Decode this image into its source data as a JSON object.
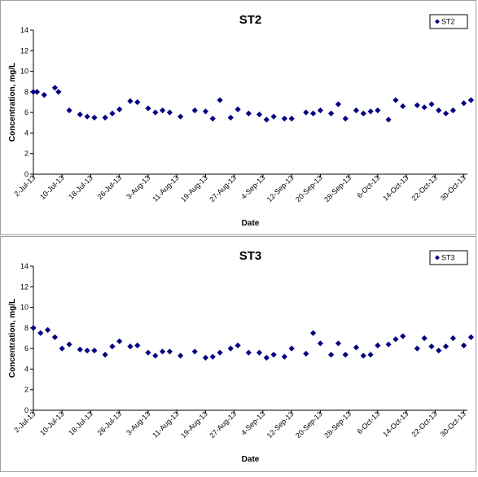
{
  "chart_data": [
    {
      "type": "scatter",
      "title": "ST2",
      "xlabel": "Date",
      "ylabel": "Concentration, mg/L",
      "xlim": [
        "2013-07-02",
        "2013-10-31"
      ],
      "ylim": [
        0,
        14
      ],
      "y_ticks": [
        0,
        2,
        4,
        6,
        8,
        10,
        12,
        14
      ],
      "x_tick_labels": [
        "2-Jul-13",
        "10-Jul-13",
        "18-Jul-13",
        "26-Jul-13",
        "3-Aug-13",
        "11-Aug-13",
        "19-Aug-13",
        "27-Aug-13",
        "4-Sep-13",
        "12-Sep-13",
        "20-Sep-13",
        "28-Sep-13",
        "6-Oct-13",
        "14-Oct-13",
        "22-Oct-13",
        "30-Oct-13"
      ],
      "x_tick_dates": [
        "2013-07-02",
        "2013-07-10",
        "2013-07-18",
        "2013-07-26",
        "2013-08-03",
        "2013-08-11",
        "2013-08-19",
        "2013-08-27",
        "2013-09-04",
        "2013-09-12",
        "2013-09-20",
        "2013-09-28",
        "2013-10-06",
        "2013-10-14",
        "2013-10-22",
        "2013-10-30"
      ],
      "legend_position": "top-right",
      "marker_color": "#000080",
      "series": [
        {
          "name": "ST2",
          "points": [
            {
              "x": "2013-07-02",
              "y": 8.0
            },
            {
              "x": "2013-07-03",
              "y": 8.0
            },
            {
              "x": "2013-07-05",
              "y": 7.7
            },
            {
              "x": "2013-07-08",
              "y": 8.4
            },
            {
              "x": "2013-07-09",
              "y": 8.0
            },
            {
              "x": "2013-07-12",
              "y": 6.2
            },
            {
              "x": "2013-07-15",
              "y": 5.8
            },
            {
              "x": "2013-07-17",
              "y": 5.6
            },
            {
              "x": "2013-07-19",
              "y": 5.5
            },
            {
              "x": "2013-07-22",
              "y": 5.5
            },
            {
              "x": "2013-07-24",
              "y": 5.9
            },
            {
              "x": "2013-07-26",
              "y": 6.3
            },
            {
              "x": "2013-07-29",
              "y": 7.1
            },
            {
              "x": "2013-07-31",
              "y": 7.0
            },
            {
              "x": "2013-08-03",
              "y": 6.4
            },
            {
              "x": "2013-08-05",
              "y": 6.0
            },
            {
              "x": "2013-08-07",
              "y": 6.2
            },
            {
              "x": "2013-08-09",
              "y": 6.0
            },
            {
              "x": "2013-08-12",
              "y": 5.6
            },
            {
              "x": "2013-08-16",
              "y": 6.2
            },
            {
              "x": "2013-08-19",
              "y": 6.1
            },
            {
              "x": "2013-08-21",
              "y": 5.4
            },
            {
              "x": "2013-08-23",
              "y": 7.2
            },
            {
              "x": "2013-08-26",
              "y": 5.5
            },
            {
              "x": "2013-08-28",
              "y": 6.3
            },
            {
              "x": "2013-08-31",
              "y": 5.9
            },
            {
              "x": "2013-09-03",
              "y": 5.8
            },
            {
              "x": "2013-09-05",
              "y": 5.3
            },
            {
              "x": "2013-09-07",
              "y": 5.6
            },
            {
              "x": "2013-09-10",
              "y": 5.4
            },
            {
              "x": "2013-09-12",
              "y": 5.4
            },
            {
              "x": "2013-09-16",
              "y": 6.0
            },
            {
              "x": "2013-09-18",
              "y": 5.9
            },
            {
              "x": "2013-09-20",
              "y": 6.2
            },
            {
              "x": "2013-09-23",
              "y": 5.9
            },
            {
              "x": "2013-09-25",
              "y": 6.8
            },
            {
              "x": "2013-09-27",
              "y": 5.4
            },
            {
              "x": "2013-09-30",
              "y": 6.2
            },
            {
              "x": "2013-10-02",
              "y": 5.9
            },
            {
              "x": "2013-10-04",
              "y": 6.1
            },
            {
              "x": "2013-10-06",
              "y": 6.2
            },
            {
              "x": "2013-10-09",
              "y": 5.3
            },
            {
              "x": "2013-10-11",
              "y": 7.2
            },
            {
              "x": "2013-10-13",
              "y": 6.6
            },
            {
              "x": "2013-10-17",
              "y": 6.7
            },
            {
              "x": "2013-10-19",
              "y": 6.5
            },
            {
              "x": "2013-10-21",
              "y": 6.8
            },
            {
              "x": "2013-10-23",
              "y": 6.2
            },
            {
              "x": "2013-10-25",
              "y": 5.9
            },
            {
              "x": "2013-10-27",
              "y": 6.2
            },
            {
              "x": "2013-10-30",
              "y": 6.9
            },
            {
              "x": "2013-11-01",
              "y": 7.2
            }
          ]
        }
      ]
    },
    {
      "type": "scatter",
      "title": "ST3",
      "xlabel": "Date",
      "ylabel": "Concentration, mg/L",
      "xlim": [
        "2013-07-02",
        "2013-10-31"
      ],
      "ylim": [
        0,
        14
      ],
      "y_ticks": [
        0,
        2,
        4,
        6,
        8,
        10,
        12,
        14
      ],
      "x_tick_labels": [
        "2-Jul-13",
        "10-Jul-13",
        "18-Jul-13",
        "26-Jul-13",
        "3-Aug-13",
        "11-Aug-13",
        "19-Aug-13",
        "27-Aug-13",
        "4-Sep-13",
        "12-Sep-13",
        "20-Sep-13",
        "28-Sep-13",
        "6-Oct-13",
        "14-Oct-13",
        "22-Oct-13",
        "30-Oct-13"
      ],
      "x_tick_dates": [
        "2013-07-02",
        "2013-07-10",
        "2013-07-18",
        "2013-07-26",
        "2013-08-03",
        "2013-08-11",
        "2013-08-19",
        "2013-08-27",
        "2013-09-04",
        "2013-09-12",
        "2013-09-20",
        "2013-09-28",
        "2013-10-06",
        "2013-10-14",
        "2013-10-22",
        "2013-10-30"
      ],
      "legend_position": "top-right",
      "marker_color": "#000080",
      "series": [
        {
          "name": "ST3",
          "points": [
            {
              "x": "2013-07-02",
              "y": 8.0
            },
            {
              "x": "2013-07-04",
              "y": 7.5
            },
            {
              "x": "2013-07-06",
              "y": 7.8
            },
            {
              "x": "2013-07-08",
              "y": 7.1
            },
            {
              "x": "2013-07-10",
              "y": 6.0
            },
            {
              "x": "2013-07-12",
              "y": 6.4
            },
            {
              "x": "2013-07-15",
              "y": 5.9
            },
            {
              "x": "2013-07-17",
              "y": 5.8
            },
            {
              "x": "2013-07-19",
              "y": 5.8
            },
            {
              "x": "2013-07-22",
              "y": 5.4
            },
            {
              "x": "2013-07-24",
              "y": 6.2
            },
            {
              "x": "2013-07-26",
              "y": 6.7
            },
            {
              "x": "2013-07-29",
              "y": 6.2
            },
            {
              "x": "2013-07-31",
              "y": 6.3
            },
            {
              "x": "2013-08-03",
              "y": 5.6
            },
            {
              "x": "2013-08-05",
              "y": 5.3
            },
            {
              "x": "2013-08-07",
              "y": 5.7
            },
            {
              "x": "2013-08-09",
              "y": 5.7
            },
            {
              "x": "2013-08-12",
              "y": 5.3
            },
            {
              "x": "2013-08-16",
              "y": 5.7
            },
            {
              "x": "2013-08-19",
              "y": 5.1
            },
            {
              "x": "2013-08-21",
              "y": 5.2
            },
            {
              "x": "2013-08-23",
              "y": 5.6
            },
            {
              "x": "2013-08-26",
              "y": 6.0
            },
            {
              "x": "2013-08-28",
              "y": 6.3
            },
            {
              "x": "2013-08-31",
              "y": 5.6
            },
            {
              "x": "2013-09-03",
              "y": 5.6
            },
            {
              "x": "2013-09-05",
              "y": 5.1
            },
            {
              "x": "2013-09-07",
              "y": 5.4
            },
            {
              "x": "2013-09-10",
              "y": 5.2
            },
            {
              "x": "2013-09-12",
              "y": 6.0
            },
            {
              "x": "2013-09-16",
              "y": 5.5
            },
            {
              "x": "2013-09-18",
              "y": 7.5
            },
            {
              "x": "2013-09-20",
              "y": 6.5
            },
            {
              "x": "2013-09-23",
              "y": 5.4
            },
            {
              "x": "2013-09-25",
              "y": 6.5
            },
            {
              "x": "2013-09-27",
              "y": 5.4
            },
            {
              "x": "2013-09-30",
              "y": 6.1
            },
            {
              "x": "2013-10-02",
              "y": 5.3
            },
            {
              "x": "2013-10-04",
              "y": 5.4
            },
            {
              "x": "2013-10-06",
              "y": 6.3
            },
            {
              "x": "2013-10-09",
              "y": 6.4
            },
            {
              "x": "2013-10-11",
              "y": 6.9
            },
            {
              "x": "2013-10-13",
              "y": 7.2
            },
            {
              "x": "2013-10-17",
              "y": 6.0
            },
            {
              "x": "2013-10-19",
              "y": 7.0
            },
            {
              "x": "2013-10-21",
              "y": 6.2
            },
            {
              "x": "2013-10-23",
              "y": 5.8
            },
            {
              "x": "2013-10-25",
              "y": 6.2
            },
            {
              "x": "2013-10-27",
              "y": 7.0
            },
            {
              "x": "2013-10-30",
              "y": 6.3
            },
            {
              "x": "2013-11-01",
              "y": 7.1
            }
          ]
        }
      ]
    }
  ]
}
